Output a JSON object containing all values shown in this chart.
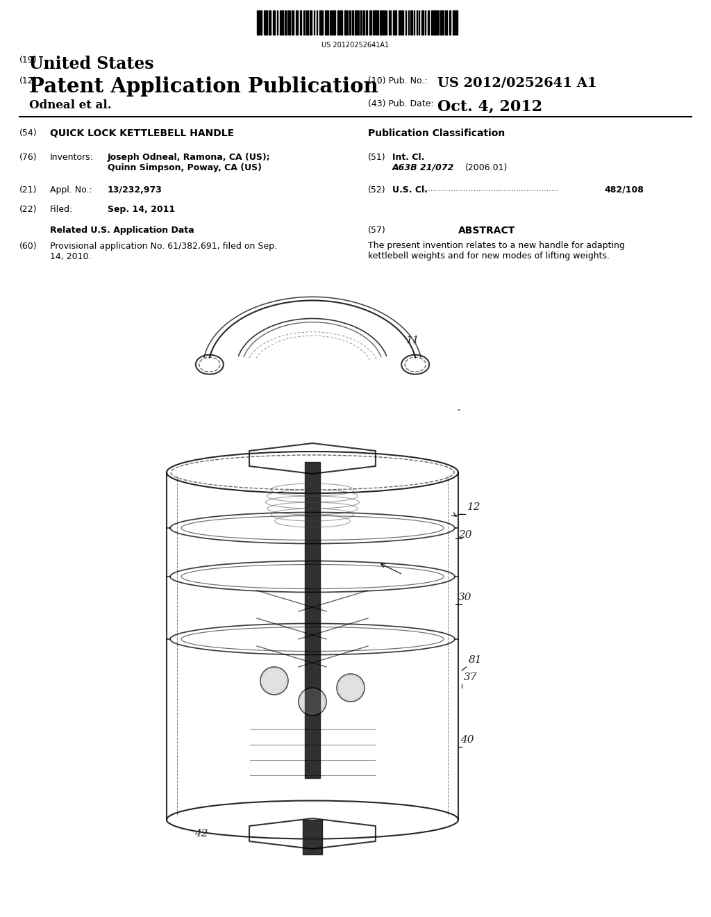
{
  "background_color": "#ffffff",
  "barcode_text": "US 20120252641A1",
  "title_19": "(19)",
  "title_19_text": "United States",
  "title_12": "(12)",
  "title_12_text": "Patent Application Publication",
  "assignee": "Odneal et al.",
  "pub_no_label": "(10) Pub. No.:",
  "pub_no": "US 2012/0252641 A1",
  "pub_date_label": "(43) Pub. Date:",
  "pub_date": "Oct. 4, 2012",
  "field_54_label": "(54)",
  "field_54": "QUICK LOCK KETTLEBELL HANDLE",
  "pub_class_label": "Publication Classification",
  "field_76_label": "(76)",
  "field_76_title": "Inventors:",
  "field_76_text1": "Joseph Odneal, Ramona, CA (US);",
  "field_76_text2": "Quinn Simpson, Poway, CA (US)",
  "field_51_label": "(51)",
  "field_51_title": "Int. Cl.",
  "field_51_class": "A63B 21/072",
  "field_51_year": "(2006.01)",
  "field_21_label": "(21)",
  "field_21_title": "Appl. No.:",
  "field_21_text": "13/232,973",
  "field_52_label": "(52)",
  "field_52_title": "U.S. Cl.",
  "field_52_dots": "......................................................",
  "field_52_text": "482/108",
  "field_22_label": "(22)",
  "field_22_title": "Filed:",
  "field_22_text": "Sep. 14, 2011",
  "related_title": "Related U.S. Application Data",
  "field_60_label": "(60)",
  "field_60_text": "Provisional application No. 61/382,691, filed on Sep.\n14, 2010.",
  "field_57_label": "(57)",
  "field_57_title": "ABSTRACT",
  "field_57_text": "The present invention relates to a new handle for adapting\nkettlebell weights and for new modes of lifting weights.",
  "label_11": "11",
  "label_12": "12",
  "label_20": "20",
  "label_30": "30",
  "label_81": "81",
  "label_37": "37",
  "label_40": "40",
  "label_42": "42"
}
